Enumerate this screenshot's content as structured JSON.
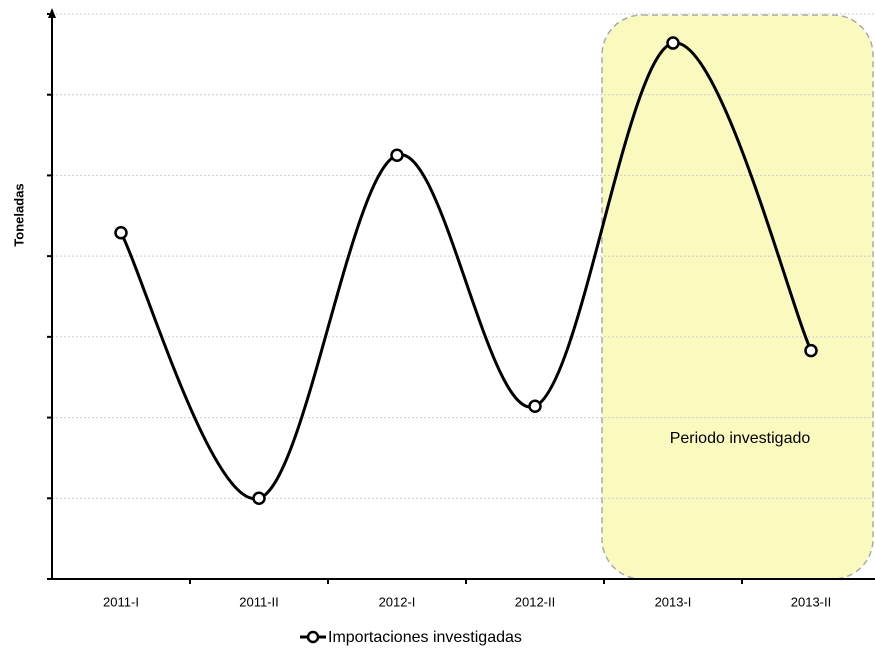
{
  "chart_data": {
    "type": "line",
    "y_label": "Toneladas",
    "categories": [
      "2011-I",
      "2011-II",
      "2012-I",
      "2012-II",
      "2013-I",
      "2013-II"
    ],
    "series": [
      {
        "name": "Importaciones investigadas",
        "color": "#000000",
        "values": [
          4.29,
          1.0,
          5.25,
          2.14,
          6.64,
          2.83
        ]
      }
    ],
    "ylim": [
      0,
      7
    ],
    "yticks": [
      0,
      1,
      2,
      3,
      4,
      5,
      6,
      7
    ],
    "grid": true,
    "annotation": "Periodo investigado"
  }
}
